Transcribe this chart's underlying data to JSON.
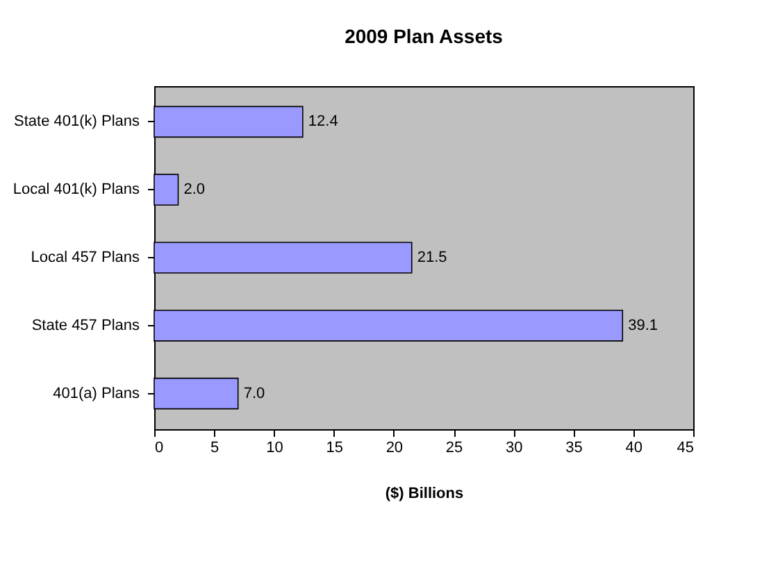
{
  "chart_data": {
    "type": "bar",
    "orientation": "horizontal",
    "title": "2009 Plan Assets",
    "xlabel": "($) Billions",
    "categories": [
      "State 401(k) Plans",
      "Local 401(k) Plans",
      "Local 457 Plans",
      "State 457 Plans",
      "401(a) Plans"
    ],
    "values": [
      12.4,
      2.0,
      21.5,
      39.1,
      7.0
    ],
    "value_labels": [
      "12.4",
      "2.0",
      "21.5",
      "39.1",
      "7.0"
    ],
    "color": "#9999ff",
    "xlim": [
      0,
      45
    ],
    "xticks": [
      0,
      5,
      10,
      15,
      20,
      25,
      30,
      35,
      40,
      45
    ],
    "grid": false
  }
}
